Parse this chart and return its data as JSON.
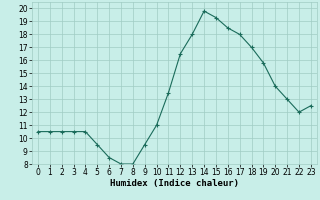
{
  "x": [
    0,
    1,
    2,
    3,
    4,
    5,
    6,
    7,
    8,
    9,
    10,
    11,
    12,
    13,
    14,
    15,
    16,
    17,
    18,
    19,
    20,
    21,
    22,
    23
  ],
  "y": [
    10.5,
    10.5,
    10.5,
    10.5,
    10.5,
    9.5,
    8.5,
    8.0,
    8.0,
    9.5,
    11.0,
    13.5,
    16.5,
    18.0,
    19.8,
    19.3,
    18.5,
    18.0,
    17.0,
    15.8,
    14.0,
    13.0,
    12.0,
    12.5
  ],
  "xlabel": "Humidex (Indice chaleur)",
  "xlim": [
    -0.5,
    23.5
  ],
  "ylim": [
    8,
    20.5
  ],
  "yticks": [
    8,
    9,
    10,
    11,
    12,
    13,
    14,
    15,
    16,
    17,
    18,
    19,
    20
  ],
  "xticks": [
    0,
    1,
    2,
    3,
    4,
    5,
    6,
    7,
    8,
    9,
    10,
    11,
    12,
    13,
    14,
    15,
    16,
    17,
    18,
    19,
    20,
    21,
    22,
    23
  ],
  "line_color": "#1a6b5a",
  "marker": "+",
  "bg_color": "#c8eee8",
  "grid_color": "#a0ccc4",
  "label_fontsize": 6.5,
  "tick_fontsize": 5.5
}
